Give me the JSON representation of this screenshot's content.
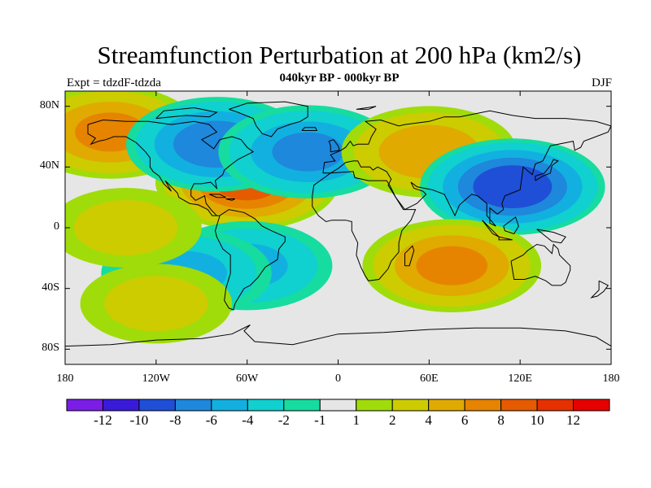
{
  "title": "Streamfunction Perturbation at 200 hPa (km2/s)",
  "subtitle": "040kyr BP - 000kyr BP",
  "left_label": "Expt = tdzdF-tdzda",
  "right_label": "DJF",
  "lat_labels": [
    "80N",
    "40N",
    "0",
    "40S",
    "80S"
  ],
  "lon_labels": [
    "180",
    "120W",
    "60W",
    "0",
    "60E",
    "120E",
    "180"
  ],
  "colorbar": {
    "labels": [
      "-12",
      "-10",
      "-8",
      "-6",
      "-4",
      "-2",
      "-1",
      "1",
      "2",
      "4",
      "6",
      "8",
      "10",
      "12"
    ],
    "colors": [
      "#7a1ee6",
      "#3a1ad9",
      "#1e4fd6",
      "#1e88dc",
      "#12b0e0",
      "#10d0d0",
      "#16dca0",
      "#e6e6e6",
      "#a0dc0a",
      "#cccc00",
      "#e0aa00",
      "#e68400",
      "#e65a00",
      "#e63000",
      "#e60000"
    ]
  },
  "map_data": {
    "projection": "cylindrical equidistant",
    "lon_range": [
      -180,
      180
    ],
    "lat_range": [
      -90,
      90
    ],
    "variable": "streamfunction perturbation at 200 hPa",
    "units": "km2/s",
    "season": "DJF",
    "contour_levels": [
      -12,
      -10,
      -8,
      -6,
      -4,
      -2,
      -1,
      1,
      2,
      4,
      6,
      8,
      10,
      12
    ],
    "features": [
      {
        "lon": -60,
        "lat": 30,
        "value": 8
      },
      {
        "lon": -150,
        "lat": 63,
        "value": 6
      },
      {
        "lon": -80,
        "lat": 55,
        "value": -7
      },
      {
        "lon": -20,
        "lat": 50,
        "value": -6
      },
      {
        "lon": 60,
        "lat": 50,
        "value": 5
      },
      {
        "lon": 115,
        "lat": 27,
        "value": -9
      },
      {
        "lon": 75,
        "lat": -25,
        "value": 6
      },
      {
        "lon": -60,
        "lat": -25,
        "value": -4
      },
      {
        "lon": -100,
        "lat": -30,
        "value": -4
      },
      {
        "lon": -140,
        "lat": 0,
        "value": 2
      },
      {
        "lon": -120,
        "lat": -50,
        "value": 2
      }
    ]
  }
}
